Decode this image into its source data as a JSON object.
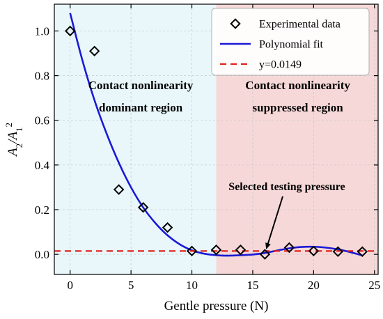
{
  "chart_data": {
    "type": "scatter",
    "xlabel": "Gentle pressure (N)",
    "ylabel_main": "A",
    "ylabel_sub1": "2",
    "ylabel_slash": "/A",
    "ylabel_sub2": "1",
    "ylabel_sup": "2",
    "xlim": [
      -1.3,
      25.3
    ],
    "ylim": [
      -0.09,
      1.12
    ],
    "xticks": [
      0,
      5,
      10,
      15,
      20,
      25
    ],
    "xtick_labels": [
      "0",
      "5",
      "10",
      "15",
      "20",
      "25"
    ],
    "yticks": [
      0.0,
      0.2,
      0.4,
      0.6,
      0.8,
      1.0
    ],
    "ytick_labels": [
      "0.0",
      "0.2",
      "0.4",
      "0.6",
      "0.8",
      "1.0"
    ],
    "grid": true,
    "legend_position": "top-right",
    "series": [
      {
        "name": "Experimental data",
        "kind": "marker",
        "marker": "diamond",
        "color": "#000000",
        "x": [
          0,
          2,
          4,
          6,
          8,
          10,
          12,
          14,
          16,
          18,
          20,
          22,
          24
        ],
        "y": [
          1.0,
          0.91,
          0.29,
          0.21,
          0.12,
          0.015,
          0.02,
          0.02,
          0.0,
          0.03,
          0.015,
          0.012,
          0.012
        ]
      },
      {
        "name": "Polynomial fit",
        "kind": "line",
        "color": "#1a1ad6",
        "x": [
          0,
          1,
          2,
          3,
          4,
          5,
          6,
          7,
          8,
          9,
          10,
          11,
          12,
          13,
          14,
          15,
          16,
          17,
          18,
          19,
          20,
          21,
          22,
          23,
          24
        ],
        "y": [
          1.08,
          0.87,
          0.69,
          0.54,
          0.41,
          0.3,
          0.21,
          0.14,
          0.085,
          0.045,
          0.018,
          0.003,
          -0.004,
          -0.006,
          -0.004,
          -0.001,
          0.006,
          0.017,
          0.027,
          0.033,
          0.034,
          0.03,
          0.022,
          0.01,
          -0.005
        ]
      },
      {
        "name": "y=0.0149",
        "kind": "hline",
        "color": "#e0211b",
        "y": 0.0149
      }
    ],
    "regions": [
      {
        "x_from": -1.3,
        "x_to": 12,
        "color": "#e9f7fb",
        "label_line1": "Contact nonlinearity",
        "label_line2": "dominant region"
      },
      {
        "x_from": 12,
        "x_to": 25.3,
        "color": "#f7d8d8",
        "label_line1": "Contact nonlinearity",
        "label_line2": "suppressed region"
      }
    ],
    "annotation": {
      "text": "Selected testing pressure",
      "x": 16,
      "y": 0.0
    }
  }
}
